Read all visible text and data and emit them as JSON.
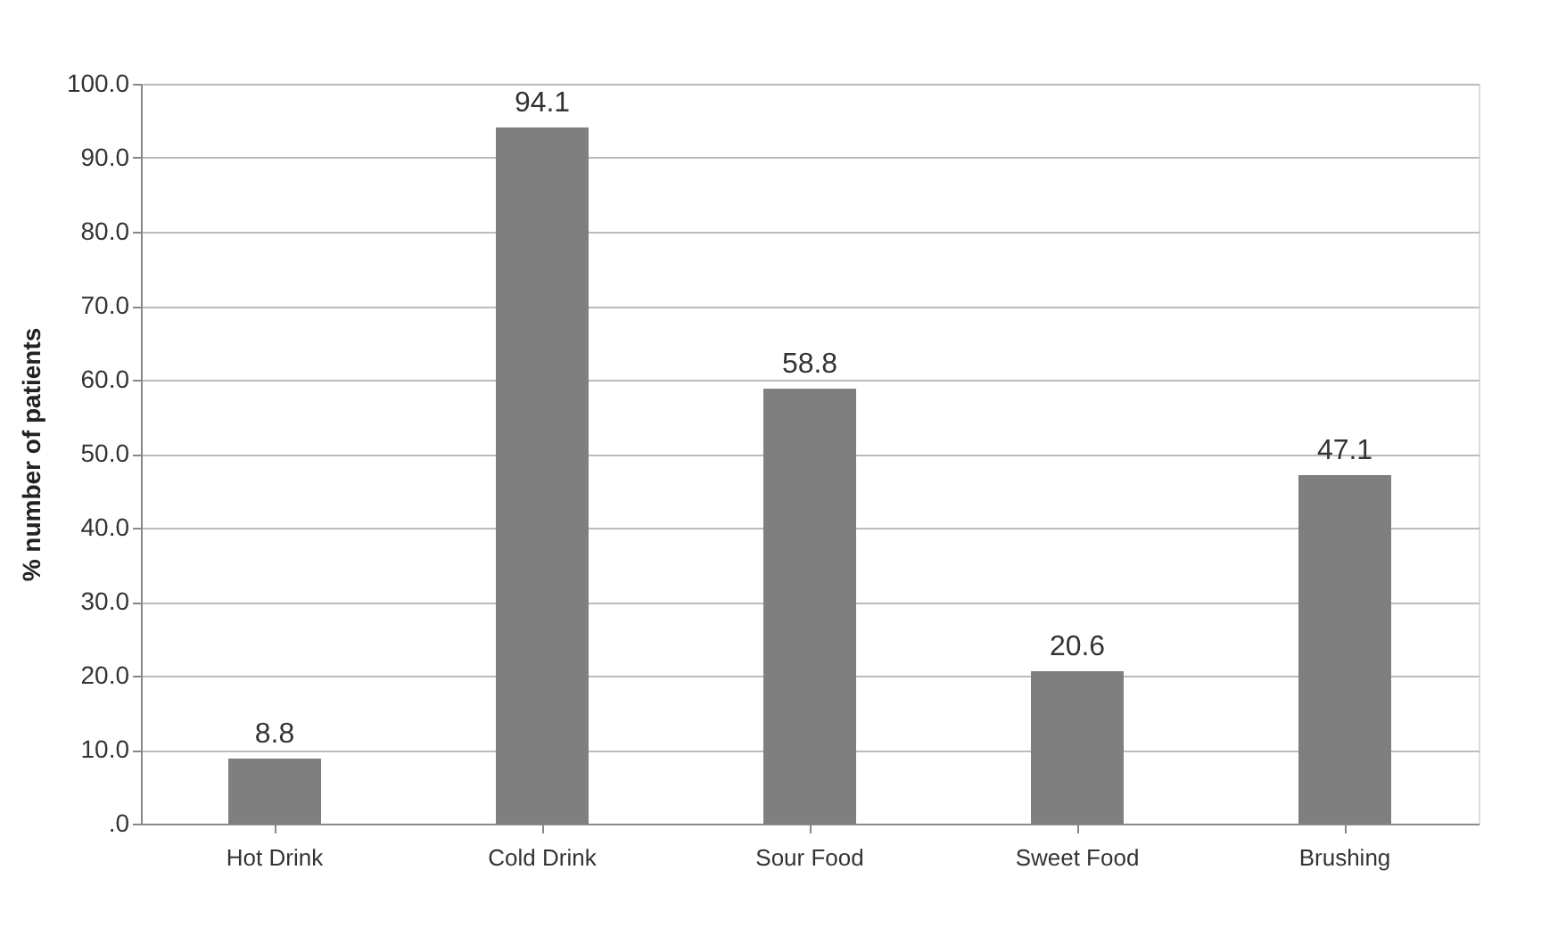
{
  "chart_data": {
    "type": "bar",
    "ylabel": "% number of patients",
    "categories": [
      "Hot Drink",
      "Cold Drink",
      "Sour Food",
      "Sweet Food",
      "Brushing"
    ],
    "values": [
      8.8,
      94.1,
      58.8,
      20.6,
      47.1
    ],
    "color": "#7f7f7f",
    "ylim": [
      0,
      100
    ],
    "yticks": [
      {
        "value": 0,
        "label": ".0"
      },
      {
        "value": 10,
        "label": "10.0"
      },
      {
        "value": 20,
        "label": "20.0"
      },
      {
        "value": 30,
        "label": "30.0"
      },
      {
        "value": 40,
        "label": "40.0"
      },
      {
        "value": 50,
        "label": "50.0"
      },
      {
        "value": 60,
        "label": "60.0"
      },
      {
        "value": 70,
        "label": "70.0"
      },
      {
        "value": 80,
        "label": "80.0"
      },
      {
        "value": 90,
        "label": "90.0"
      },
      {
        "value": 100,
        "label": "100.0"
      }
    ],
    "grid": "y",
    "data_labels": true
  }
}
